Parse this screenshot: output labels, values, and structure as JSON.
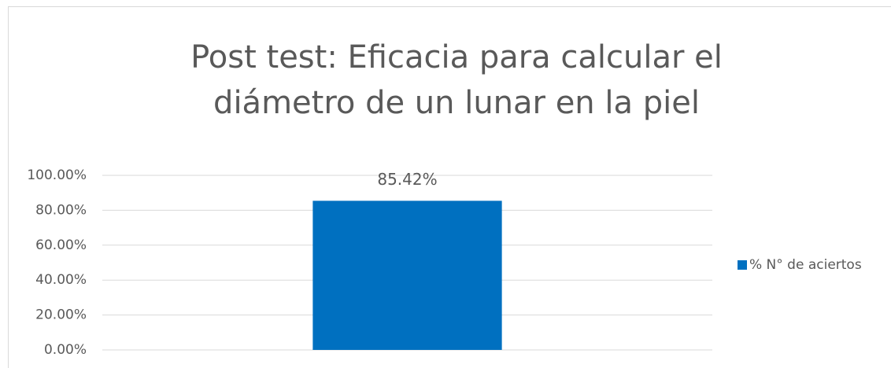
{
  "chart_data": {
    "type": "bar",
    "title": "Post test: Eficacia para calcular el diámetro de un lunar en la piel",
    "categories": [
      null
    ],
    "series": [
      {
        "name": "% N° de aciertos",
        "color": "#0070c0",
        "values": [
          85.42
        ],
        "value_labels": [
          "85.42%"
        ]
      }
    ],
    "ylim": [
      0,
      100
    ],
    "yticks": [
      {
        "value": 0,
        "label": "0.00%"
      },
      {
        "value": 20,
        "label": "20.00%"
      },
      {
        "value": 40,
        "label": "40.00%"
      },
      {
        "value": 60,
        "label": "60.00%"
      },
      {
        "value": 80,
        "label": "80.00%"
      },
      {
        "value": 100,
        "label": "100.00%"
      }
    ],
    "grid": true,
    "legend": "right"
  }
}
